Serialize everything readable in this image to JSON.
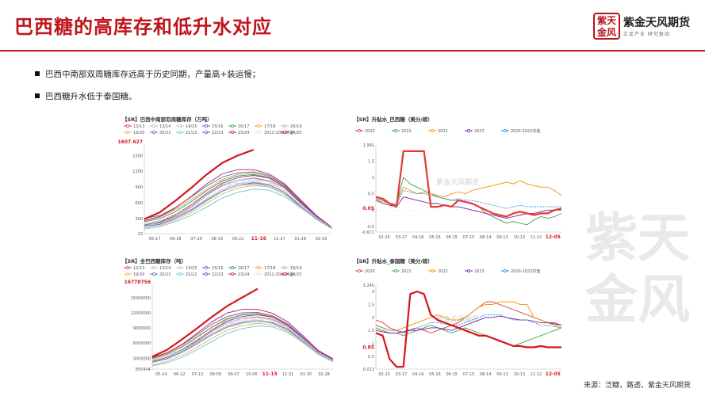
{
  "page": {
    "title": "巴西糖的高库存和低升水对应",
    "bullets": [
      "巴西中南部双周糖库存远高于历史同期，产量高+装运慢；",
      "巴西糖升水低于泰国糖。"
    ],
    "source": "来源：泛糖，路透，紫金天风期货",
    "logo_name": "紫金天风期货",
    "logo_slogan": "立足产业  研究驱动",
    "logo_seal": "紫天金风",
    "watermark_text": "紫天金风",
    "chart_watermark": "紫金天风期货"
  },
  "colors": {
    "accent": "#c0141c"
  },
  "chart_data": [
    {
      "type": "line",
      "title": "【SR】巴西中南部双周糖库存（万吨）",
      "legend_position": "top",
      "x_ticks": [
        "05-17",
        "06-18",
        "07-20",
        "08-19",
        "09-22",
        "11-16",
        "12-27",
        "01-28",
        "02-29"
      ],
      "highlight_tick": "11-16",
      "y_ticks": [
        13,
        300,
        600,
        900,
        1200,
        1500
      ],
      "highlight_value_label": "1607.627",
      "ylim": [
        13,
        1700
      ],
      "series": [
        {
          "name": "12/13",
          "color": "#d9413d",
          "values": [
            170,
            230,
            350,
            520,
            740,
            930,
            1030,
            1070,
            1020,
            880,
            600,
            330,
            120
          ]
        },
        {
          "name": "13/14",
          "color": "#bdbdbd",
          "values": [
            210,
            260,
            380,
            560,
            760,
            940,
            1030,
            1060,
            990,
            830,
            560,
            300,
            110
          ]
        },
        {
          "name": "14/15",
          "color": "#a9c8e8",
          "values": [
            180,
            220,
            330,
            480,
            680,
            860,
            960,
            1000,
            950,
            800,
            550,
            310,
            120
          ]
        },
        {
          "name": "15/16",
          "color": "#3b6fd1",
          "values": [
            150,
            190,
            300,
            450,
            640,
            820,
            930,
            980,
            940,
            790,
            540,
            300,
            110
          ]
        },
        {
          "name": "16/17",
          "color": "#2f9b3a",
          "values": [
            240,
            300,
            430,
            620,
            830,
            1010,
            1110,
            1140,
            1080,
            910,
            620,
            340,
            130
          ]
        },
        {
          "name": "17/18",
          "color": "#f29a38",
          "values": [
            260,
            330,
            470,
            660,
            860,
            1040,
            1140,
            1170,
            1100,
            930,
            640,
            360,
            140
          ]
        },
        {
          "name": "18/19",
          "color": "#b0b0b0",
          "values": [
            160,
            210,
            320,
            470,
            660,
            830,
            930,
            960,
            910,
            760,
            520,
            290,
            110
          ]
        },
        {
          "name": "19/20",
          "color": "#e8b54a",
          "values": [
            120,
            170,
            270,
            410,
            590,
            770,
            880,
            930,
            900,
            760,
            530,
            300,
            110
          ]
        },
        {
          "name": "20/21",
          "color": "#4a72c4",
          "values": [
            300,
            360,
            510,
            710,
            920,
            1090,
            1170,
            1190,
            1120,
            940,
            640,
            360,
            140
          ]
        },
        {
          "name": "21/22",
          "color": "#6cc0e5",
          "values": [
            100,
            150,
            240,
            360,
            520,
            690,
            800,
            860,
            840,
            720,
            510,
            300,
            120
          ]
        },
        {
          "name": "22/23",
          "color": "#7c3fb8",
          "values": [
            180,
            240,
            370,
            560,
            780,
            970,
            1080,
            1120,
            1070,
            900,
            620,
            340,
            130
          ]
        },
        {
          "name": "23/24",
          "color": "#c2185b",
          "values": [
            260,
            340,
            500,
            720,
            960,
            1150,
            1230,
            1230,
            1150,
            960,
            660,
            370,
            140
          ]
        },
        {
          "name": "2012-2023均值",
          "color": "#e6e6e6",
          "values": [
            190,
            250,
            370,
            540,
            740,
            910,
            1010,
            1050,
            1000,
            840,
            580,
            330,
            130
          ]
        },
        {
          "name": "24/25",
          "color": "#d4161d",
          "values": [
            290,
            420,
            640,
            880,
            1140,
            1360,
            1500,
            1607.627
          ]
        }
      ]
    },
    {
      "type": "line",
      "title": "【SR】全巴西糖库存（吨）",
      "legend_position": "top",
      "x_ticks": [
        "05-14",
        "06-12",
        "07-12",
        "08-09",
        "09-07",
        "10-06",
        "11-15",
        "12-31",
        "01-30",
        "02-28"
      ],
      "highlight_tick": "11-15",
      "y_ticks": [
        850404,
        3000000,
        6000000,
        9000000,
        12000000,
        15000000
      ],
      "highlight_value_label": "16778756",
      "ylim": [
        850404,
        17500000
      ],
      "series": [
        {
          "name": "12/13",
          "color": "#d9413d",
          "values": [
            2400000,
            3200000,
            4600000,
            6400000,
            8400000,
            10000000,
            10900000,
            11200000,
            10700000,
            9300000,
            6900000,
            4200000,
            2600000
          ]
        },
        {
          "name": "13/14",
          "color": "#bdbdbd",
          "values": [
            2700000,
            3500000,
            4900000,
            6700000,
            8600000,
            10100000,
            10900000,
            11100000,
            10500000,
            9000000,
            6600000,
            4000000,
            2500000
          ]
        },
        {
          "name": "14/15",
          "color": "#a9c8e8",
          "values": [
            2500000,
            3200000,
            4500000,
            6200000,
            8000000,
            9500000,
            10300000,
            10600000,
            10100000,
            8800000,
            6500000,
            4000000,
            2500000
          ]
        },
        {
          "name": "15/16",
          "color": "#3b6fd1",
          "values": [
            2200000,
            2900000,
            4200000,
            5900000,
            7700000,
            9200000,
            10000000,
            10400000,
            10000000,
            8700000,
            6400000,
            3900000,
            2400000
          ]
        },
        {
          "name": "16/17",
          "color": "#2f9b3a",
          "values": [
            2900000,
            3800000,
            5300000,
            7200000,
            9200000,
            10800000,
            11600000,
            11800000,
            11200000,
            9600000,
            7100000,
            4300000,
            2700000
          ]
        },
        {
          "name": "17/18",
          "color": "#f29a38",
          "values": [
            3000000,
            3900000,
            5400000,
            7300000,
            9300000,
            10900000,
            11700000,
            11900000,
            11300000,
            9700000,
            7200000,
            4400000,
            2800000
          ]
        },
        {
          "name": "18/19",
          "color": "#b0b0b0",
          "values": [
            2300000,
            3000000,
            4300000,
            6000000,
            7800000,
            9300000,
            10100000,
            10400000,
            9900000,
            8600000,
            6300000,
            3900000,
            2400000
          ]
        },
        {
          "name": "19/20",
          "color": "#e8b54a",
          "values": [
            1700000,
            2400000,
            3600000,
            5200000,
            7000000,
            8600000,
            9500000,
            9900000,
            9600000,
            8400000,
            6300000,
            3900000,
            2400000
          ]
        },
        {
          "name": "20/21",
          "color": "#4a72c4",
          "values": [
            3200000,
            4100000,
            5700000,
            7700000,
            9800000,
            11300000,
            12000000,
            12100000,
            11400000,
            9800000,
            7200000,
            4400000,
            2800000
          ]
        },
        {
          "name": "21/22",
          "color": "#6cc0e5",
          "values": [
            1500000,
            2100000,
            3200000,
            4700000,
            6400000,
            8000000,
            8900000,
            9400000,
            9200000,
            8100000,
            6100000,
            3800000,
            2300000
          ]
        },
        {
          "name": "22/23",
          "color": "#7c3fb8",
          "values": [
            2400000,
            3200000,
            4700000,
            6600000,
            8700000,
            10400000,
            11300000,
            11600000,
            11100000,
            9500000,
            7000000,
            4300000,
            2600000
          ]
        },
        {
          "name": "23/24",
          "color": "#c2185b",
          "values": [
            3100000,
            4100000,
            5800000,
            8000000,
            10300000,
            12000000,
            12700000,
            12700000,
            11900000,
            10200000,
            7500000,
            4600000,
            2900000
          ]
        },
        {
          "name": "2012-2023均值",
          "color": "#e6e6e6",
          "values": [
            2500000,
            3300000,
            4700000,
            6500000,
            8500000,
            10000000,
            10800000,
            11100000,
            10600000,
            9200000,
            6800000,
            4200000,
            2600000
          ]
        },
        {
          "name": "24/25",
          "color": "#d4161d",
          "values": [
            3300000,
            4700000,
            6800000,
            9000000,
            11300000,
            13400000,
            15100000,
            16778756
          ]
        }
      ]
    },
    {
      "type": "line",
      "title": "【SR】升贴水_巴西糖（美分/磅）",
      "legend_position": "top",
      "x_ticks": [
        "02-15",
        "03-17",
        "04-16",
        "05-16",
        "06-15",
        "07-15",
        "08-14",
        "09-13",
        "10-13",
        "11-12",
        "12-05"
      ],
      "highlight_tick": "12-05",
      "y_ticks": [
        -0.671,
        -0.5,
        0,
        0.5,
        1,
        1.5,
        1.991
      ],
      "y_tick_labels": [
        "-0.671",
        "-0.5",
        "0",
        "0.5",
        "1",
        "1.5",
        "1.991"
      ],
      "highlight_value_label": "0.05",
      "ylim": [
        -0.671,
        1.991
      ],
      "series": [
        {
          "name": "2020",
          "color": "#e53935",
          "values": [
            0.4,
            0.35,
            0.2,
            0.1,
            1.8,
            1.8,
            1.8,
            1.8,
            0.1,
            0.1,
            0.15,
            0.1,
            0.3,
            0.25,
            0.2,
            0.1,
            0.0,
            -0.1,
            -0.15,
            -0.2,
            -0.1,
            -0.05,
            -0.1,
            -0.15,
            -0.1,
            -0.1,
            0.0,
            0.05
          ]
        },
        {
          "name": "2021",
          "color": "#43a047",
          "values": [
            0.35,
            0.3,
            0.2,
            0.15,
            1.0,
            0.8,
            0.7,
            0.6,
            0.5,
            0.4,
            0.35,
            0.3,
            0.3,
            0.25,
            0.2,
            0.1,
            -0.1,
            -0.2,
            -0.3,
            -0.4,
            -0.35,
            -0.4,
            -0.45,
            -0.3,
            -0.2,
            -0.25,
            -0.2,
            -0.1
          ]
        },
        {
          "name": "2022",
          "color": "#fb8c00",
          "values": [
            0.3,
            0.25,
            0.2,
            0.2,
            0.7,
            0.6,
            0.5,
            0.55,
            0.5,
            0.45,
            0.4,
            0.5,
            0.55,
            0.5,
            0.6,
            0.65,
            0.7,
            0.75,
            0.8,
            0.85,
            0.8,
            0.9,
            0.8,
            0.75,
            0.7,
            0.7,
            0.6,
            0.45
          ]
        },
        {
          "name": "2023",
          "color": "#7b1fa2",
          "values": [
            0.3,
            0.2,
            0.15,
            0.1,
            0.4,
            0.35,
            0.3,
            0.25,
            0.2,
            0.2,
            0.15,
            0.1,
            0.1,
            0.05,
            0.0,
            -0.05,
            -0.1,
            -0.15,
            -0.2,
            -0.25,
            -0.2,
            -0.15,
            -0.1,
            -0.1,
            -0.05,
            0.0,
            0.0,
            0.0
          ]
        },
        {
          "name": "2020-2022均值",
          "color": "#1e88e5",
          "values": [
            0.35,
            0.3,
            0.2,
            0.15,
            0.6,
            0.55,
            0.5,
            0.5,
            0.45,
            0.4,
            0.35,
            0.3,
            0.35,
            0.3,
            0.3,
            0.25,
            0.2,
            0.15,
            0.1,
            0.05,
            0.1,
            0.15,
            0.1,
            0.1,
            0.1,
            0.1,
            0.1,
            0.1
          ]
        }
      ]
    },
    {
      "type": "line",
      "title": "【SR】升贴水_泰国糖（美分/磅）",
      "legend_position": "top",
      "x_ticks": [
        "02-15",
        "03-17",
        "04-16",
        "05-16",
        "06-15",
        "07-15",
        "08-14",
        "09-13",
        "10-13",
        "11-12",
        "12-05"
      ],
      "highlight_tick": "12-05",
      "y_ticks": [
        0.012,
        0.5,
        1,
        1.5,
        2,
        2.5,
        3,
        3.245
      ],
      "y_tick_labels": [
        "0.012",
        "0.5",
        "1",
        "1.5",
        "2",
        "2.5",
        "3",
        "3.245"
      ],
      "highlight_value_label": "0.85",
      "ylim": [
        0.012,
        3.245
      ],
      "series": [
        {
          "name": "2020",
          "color": "#e53935",
          "values": [
            1.9,
            1.8,
            1.6,
            1.5,
            1.4,
            1.5,
            1.6,
            1.5,
            1.4,
            1.5,
            1.6,
            1.7,
            1.8,
            2.0,
            2.2,
            2.4,
            2.6,
            2.6,
            2.5,
            2.4,
            2.3,
            2.2,
            2.1,
            2.0,
            1.9,
            1.8,
            1.8,
            1.7
          ]
        },
        {
          "name": "2021",
          "color": "#43a047",
          "values": [
            1.6,
            1.5,
            1.4,
            1.4,
            1.3,
            1.4,
            1.5,
            1.6,
            1.7,
            1.6,
            1.5,
            1.4,
            1.5,
            1.6,
            1.5,
            1.4,
            1.3,
            1.2,
            1.1,
            1.0,
            0.9,
            1.0,
            1.1,
            1.2,
            1.3,
            1.4,
            1.5,
            1.6
          ]
        },
        {
          "name": "2022",
          "color": "#fb8c00",
          "values": [
            1.7,
            1.6,
            1.5,
            1.5,
            1.6,
            1.7,
            1.8,
            1.9,
            2.0,
            2.1,
            2.0,
            1.9,
            1.9,
            2.0,
            2.2,
            2.4,
            2.5,
            2.5,
            2.6,
            2.6,
            2.6,
            2.5,
            2.5,
            2.0,
            1.9,
            1.8,
            1.7,
            1.6
          ]
        },
        {
          "name": "2023",
          "color": "#7b1fa2",
          "values": [
            1.5,
            1.45,
            1.4,
            1.4,
            1.45,
            1.5,
            1.5,
            1.55,
            1.6,
            1.6,
            1.55,
            1.5,
            1.6,
            1.7,
            1.8,
            1.9,
            2.0,
            2.0,
            2.05,
            2.0,
            1.95,
            1.9,
            1.9,
            1.85,
            1.8,
            1.8,
            1.75,
            1.7
          ]
        },
        {
          "name": "2020-2022均值",
          "color": "#1e88e5",
          "values": [
            1.7,
            1.6,
            1.5,
            1.5,
            1.45,
            1.55,
            1.6,
            1.7,
            1.8,
            1.8,
            1.75,
            1.7,
            1.7,
            1.8,
            1.9,
            2.0,
            2.1,
            2.1,
            2.1,
            2.0,
            1.9,
            1.9,
            1.9,
            1.8,
            1.7,
            1.7,
            1.65,
            1.6
          ]
        },
        {
          "name": "2024",
          "color": "#d4161d",
          "values": [
            1.4,
            1.3,
            0.4,
            0.1,
            0.1,
            2.9,
            3.0,
            2.9,
            2.1,
            1.9,
            1.8,
            1.7,
            1.6,
            1.5,
            1.4,
            1.3,
            1.3,
            1.2,
            1.1,
            1.0,
            0.9,
            0.9,
            0.85,
            0.85,
            0.9,
            0.85,
            0.85,
            0.85
          ]
        }
      ]
    }
  ]
}
